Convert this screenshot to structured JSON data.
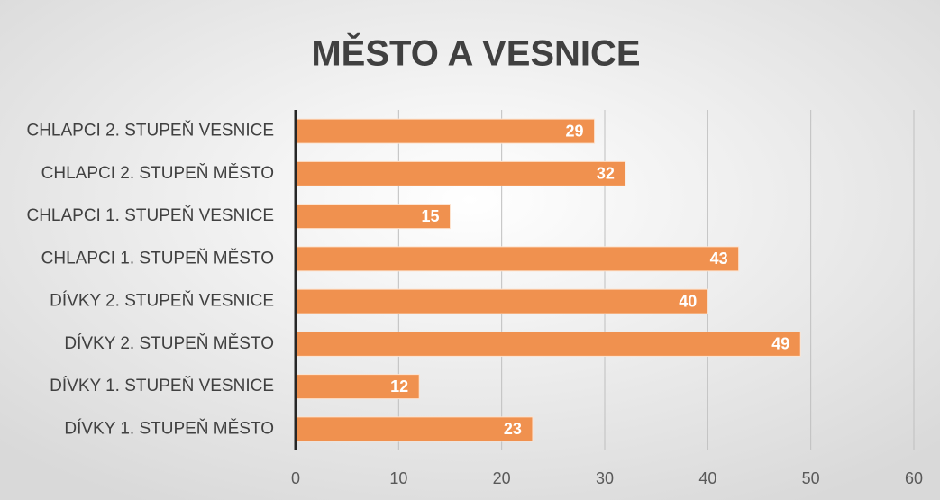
{
  "chart_data": {
    "type": "bar",
    "orientation": "horizontal",
    "title": "MĚSTO A VESNICE",
    "categories": [
      "CHLAPCI 2. STUPEŇ VESNICE",
      "CHLAPCI 2. STUPEŇ MĚSTO",
      "CHLAPCI 1. STUPEŇ VESNICE",
      "CHLAPCI 1. STUPEŇ MĚSTO",
      "DÍVKY 2. STUPEŇ VESNICE",
      "DÍVKY 2. STUPEŇ MĚSTO",
      "DÍVKY 1. STUPEŇ VESNICE",
      "DÍVKY 1. STUPEŇ MĚSTO"
    ],
    "values": [
      29,
      32,
      15,
      43,
      40,
      49,
      12,
      23
    ],
    "color": "#f0914f",
    "xlim": [
      0,
      60
    ],
    "xticks": [
      0,
      10,
      20,
      30,
      40,
      50,
      60
    ],
    "grid": true
  }
}
